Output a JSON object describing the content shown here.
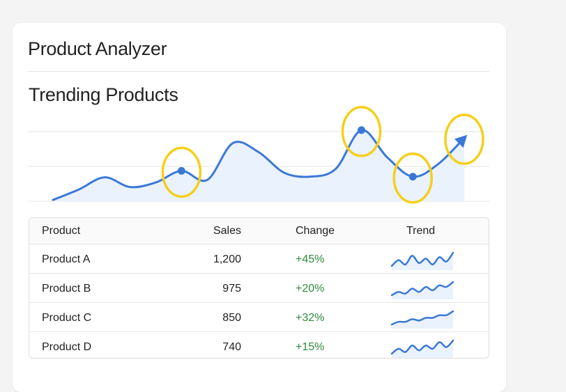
{
  "app": {
    "title": "Product Analyzer"
  },
  "chart_section": {
    "title": "Trending Products"
  },
  "colors": {
    "line": "#3a78d6",
    "fill": "#eaf2fd",
    "highlight": "#f5cf1a",
    "positive": "#2e8b3a",
    "grid": "#e4e4e4"
  },
  "chart_data": {
    "type": "area",
    "title": "Trending Products",
    "x": [
      0,
      1,
      2,
      3,
      4,
      5,
      6,
      7,
      8,
      9,
      10,
      11,
      12,
      13,
      14,
      15,
      16
    ],
    "values": [
      2,
      18,
      37,
      22,
      29,
      47,
      33,
      90,
      76,
      44,
      38,
      50,
      110,
      68,
      38,
      58,
      98
    ],
    "ylim": [
      0,
      125
    ],
    "highlighted_points": [
      5,
      12,
      14,
      16
    ],
    "grid": true,
    "xlabel": "",
    "ylabel": ""
  },
  "table": {
    "headers": {
      "product": "Product",
      "sales": "Sales",
      "change": "Change",
      "trend": "Trend"
    },
    "rows": [
      {
        "product": "Product A",
        "sales": "1,200",
        "change": "+45%",
        "trend": [
          6,
          10,
          7,
          13,
          8,
          11,
          7,
          12,
          9,
          15
        ]
      },
      {
        "product": "Product B",
        "sales": "975",
        "change": "+20%",
        "trend": [
          4,
          6,
          5,
          8,
          6,
          9,
          7,
          10,
          9,
          12
        ]
      },
      {
        "product": "Product C",
        "sales": "850",
        "change": "+32%",
        "trend": [
          4,
          6,
          6,
          8,
          7,
          9,
          9,
          11,
          11,
          14
        ]
      },
      {
        "product": "Product D",
        "sales": "740",
        "change": "+15%",
        "trend": [
          5,
          8,
          6,
          10,
          7,
          10,
          8,
          12,
          9,
          13
        ]
      }
    ]
  }
}
